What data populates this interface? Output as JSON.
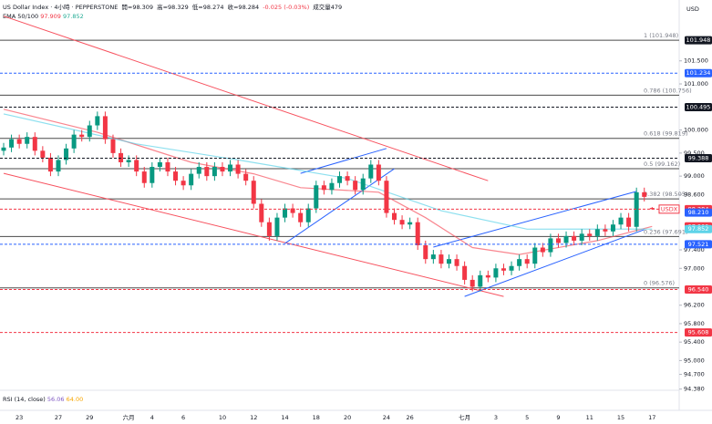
{
  "chart_data": {
    "type": "candlestick",
    "title": "US Dollar Index · 4小時 · PEPPERSTONE",
    "ohlc_legend": [
      "開=98.309",
      "高=98.329",
      "低=98.274",
      "收=98.284",
      "-0.025 (-0.03%)",
      "成交量479"
    ],
    "currency": "USD",
    "ema_legend": "EMA 50/100",
    "ema": [
      {
        "color": "#f7525f",
        "last": 97.909,
        "x": [
          0,
          12,
          24,
          32,
          38,
          48,
          54,
          60,
          66,
          76,
          83
        ],
        "values": [
          100.45,
          99.95,
          99.3,
          99.05,
          98.75,
          98.65,
          98.1,
          97.45,
          97.3,
          97.6,
          97.909
        ]
      },
      {
        "color": "#5ed3e8",
        "last": 97.852,
        "x": [
          0,
          17,
          30,
          44,
          56,
          67,
          83
        ],
        "values": [
          100.35,
          99.7,
          99.35,
          98.95,
          98.25,
          97.85,
          97.852
        ]
      }
    ],
    "rsi_legend": [
      "RSI (14, close)",
      "56.06",
      "64.00"
    ],
    "categories": [
      null,
      null,
      "23",
      null,
      null,
      null,
      null,
      "27",
      null,
      null,
      null,
      "29",
      null,
      null,
      null,
      null,
      "六月",
      null,
      null,
      "4",
      null,
      null,
      null,
      "6",
      null,
      null,
      null,
      null,
      "10",
      null,
      null,
      null,
      "12",
      null,
      null,
      null,
      "14",
      null,
      null,
      null,
      "18",
      null,
      null,
      null,
      "20",
      null,
      null,
      null,
      null,
      "24",
      null,
      null,
      "26",
      null,
      null,
      null,
      null,
      null,
      null,
      "七月",
      null,
      null,
      null,
      "3",
      null,
      null,
      null,
      "5",
      null,
      null,
      null,
      "9",
      null,
      null,
      null,
      "11",
      null,
      null,
      null,
      "15",
      null,
      null,
      null,
      "17"
    ],
    "candles": [
      [
        99.55,
        99.72,
        99.45,
        99.62
      ],
      [
        99.62,
        99.9,
        99.52,
        99.8
      ],
      [
        99.8,
        99.9,
        99.6,
        99.7
      ],
      [
        99.7,
        99.95,
        99.6,
        99.85
      ],
      [
        99.85,
        99.95,
        99.45,
        99.55
      ],
      [
        99.55,
        99.65,
        99.3,
        99.4
      ],
      [
        99.4,
        99.5,
        99.0,
        99.1
      ],
      [
        99.1,
        99.45,
        99.0,
        99.35
      ],
      [
        99.35,
        99.7,
        99.25,
        99.6
      ],
      [
        99.6,
        100.0,
        99.5,
        99.9
      ],
      [
        99.9,
        100.0,
        99.75,
        99.85
      ],
      [
        99.85,
        100.2,
        99.75,
        100.1
      ],
      [
        100.1,
        100.4,
        100.0,
        100.3
      ],
      [
        100.3,
        100.4,
        99.7,
        99.8
      ],
      [
        99.8,
        99.9,
        99.4,
        99.5
      ],
      [
        99.5,
        99.6,
        99.2,
        99.3
      ],
      [
        99.3,
        99.45,
        99.2,
        99.35
      ],
      [
        99.35,
        99.45,
        99.0,
        99.1
      ],
      [
        99.1,
        99.2,
        98.75,
        98.85
      ],
      [
        98.85,
        99.3,
        98.75,
        99.2
      ],
      [
        99.2,
        99.4,
        99.1,
        99.3
      ],
      [
        99.3,
        99.4,
        99.0,
        99.1
      ],
      [
        99.1,
        99.2,
        98.8,
        98.9
      ],
      [
        98.9,
        99.0,
        98.7,
        98.8
      ],
      [
        98.8,
        99.15,
        98.7,
        99.05
      ],
      [
        99.05,
        99.3,
        98.95,
        99.2
      ],
      [
        99.2,
        99.3,
        98.9,
        99.0
      ],
      [
        99.0,
        99.3,
        98.9,
        99.2
      ],
      [
        99.2,
        99.3,
        99.0,
        99.1
      ],
      [
        99.1,
        99.35,
        99.0,
        99.25
      ],
      [
        99.25,
        99.35,
        98.95,
        99.05
      ],
      [
        99.05,
        99.15,
        98.8,
        98.9
      ],
      [
        98.9,
        99.0,
        98.3,
        98.4
      ],
      [
        98.4,
        98.5,
        97.9,
        98.0
      ],
      [
        98.0,
        98.1,
        97.6,
        97.7
      ],
      [
        97.7,
        98.2,
        97.6,
        98.1
      ],
      [
        98.1,
        98.4,
        98.0,
        98.3
      ],
      [
        98.3,
        98.4,
        98.1,
        98.2
      ],
      [
        98.2,
        98.3,
        97.9,
        98.0
      ],
      [
        98.0,
        98.4,
        97.9,
        98.3
      ],
      [
        98.3,
        98.9,
        98.2,
        98.8
      ],
      [
        98.8,
        98.9,
        98.6,
        98.7
      ],
      [
        98.7,
        98.95,
        98.6,
        98.85
      ],
      [
        98.85,
        99.1,
        98.75,
        99.0
      ],
      [
        99.0,
        99.1,
        98.8,
        98.9
      ],
      [
        98.9,
        99.0,
        98.6,
        98.7
      ],
      [
        98.7,
        99.05,
        98.6,
        98.95
      ],
      [
        98.95,
        99.35,
        98.85,
        99.25
      ],
      [
        99.25,
        99.35,
        98.8,
        98.9
      ],
      [
        98.9,
        99.0,
        98.1,
        98.2
      ],
      [
        98.2,
        98.3,
        97.95,
        98.05
      ],
      [
        98.05,
        98.15,
        97.85,
        97.95
      ],
      [
        97.95,
        98.1,
        97.85,
        98.0
      ],
      [
        98.0,
        98.1,
        97.4,
        97.5
      ],
      [
        97.5,
        97.6,
        97.1,
        97.2
      ],
      [
        97.2,
        97.4,
        97.1,
        97.3
      ],
      [
        97.3,
        97.4,
        97.0,
        97.1
      ],
      [
        97.1,
        97.3,
        97.0,
        97.2
      ],
      [
        97.2,
        97.3,
        96.95,
        97.05
      ],
      [
        97.05,
        97.15,
        96.65,
        96.75
      ],
      [
        96.75,
        96.85,
        96.5,
        96.6
      ],
      [
        96.6,
        96.95,
        96.5,
        96.85
      ],
      [
        96.85,
        96.95,
        96.7,
        96.8
      ],
      [
        96.8,
        97.1,
        96.7,
        97.0
      ],
      [
        97.0,
        97.1,
        96.85,
        96.95
      ],
      [
        96.95,
        97.15,
        96.85,
        97.05
      ],
      [
        97.05,
        97.3,
        96.95,
        97.2
      ],
      [
        97.2,
        97.3,
        97.0,
        97.1
      ],
      [
        97.1,
        97.55,
        97.0,
        97.45
      ],
      [
        97.45,
        97.55,
        97.25,
        97.35
      ],
      [
        97.35,
        97.75,
        97.25,
        97.65
      ],
      [
        97.65,
        97.75,
        97.45,
        97.55
      ],
      [
        97.55,
        97.8,
        97.45,
        97.7
      ],
      [
        97.7,
        97.8,
        97.5,
        97.6
      ],
      [
        97.6,
        97.85,
        97.5,
        97.75
      ],
      [
        97.75,
        97.85,
        97.6,
        97.7
      ],
      [
        97.7,
        97.95,
        97.6,
        97.85
      ],
      [
        97.85,
        97.95,
        97.7,
        97.8
      ],
      [
        97.8,
        98.05,
        97.7,
        97.95
      ],
      [
        97.95,
        98.2,
        97.85,
        98.1
      ],
      [
        98.1,
        98.2,
        97.8,
        97.9
      ],
      [
        97.9,
        98.75,
        97.8,
        98.65
      ],
      [
        98.65,
        98.75,
        98.45,
        98.55
      ],
      [
        98.309,
        98.329,
        98.274,
        98.284
      ]
    ],
    "up_color": "#089981",
    "down_color": "#f23645",
    "ylim": [
      93.92,
      102.82
    ],
    "yticks": [
      {
        "value": 101.5,
        "label": "101.500"
      },
      {
        "value": 101.0,
        "label": "101.000"
      },
      {
        "value": 100.0,
        "label": "100.000"
      },
      {
        "value": 99.5,
        "label": "99.500"
      },
      {
        "value": 99.0,
        "label": "99.000"
      },
      {
        "value": 98.6,
        "label": "98.600"
      },
      {
        "value": 97.4,
        "label": "97.400"
      },
      {
        "value": 97.0,
        "label": "97.000"
      },
      {
        "value": 96.2,
        "label": "96.200"
      },
      {
        "value": 95.8,
        "label": "95.800"
      },
      {
        "value": 95.4,
        "label": "95.400"
      },
      {
        "value": 95.0,
        "label": "95.000"
      },
      {
        "value": 94.7,
        "label": "94.700"
      },
      {
        "value": 94.38,
        "label": "94.380"
      }
    ],
    "trendlines": [
      {
        "color": "#f7525f",
        "points": [
          [
            0,
            102.47
          ],
          [
            62,
            98.9
          ]
        ]
      },
      {
        "color": "#f7525f",
        "points": [
          [
            0,
            99.06
          ],
          [
            64,
            96.39
          ]
        ]
      },
      {
        "color": "#2962ff",
        "points": [
          [
            36,
            97.54
          ],
          [
            50,
            99.16
          ]
        ]
      },
      {
        "color": "#2962ff",
        "points": [
          [
            38,
            99.06
          ],
          [
            49,
            99.6
          ]
        ]
      },
      {
        "color": "#2962ff",
        "points": [
          [
            55,
            97.46
          ],
          [
            81,
            98.67
          ]
        ]
      },
      {
        "color": "#2962ff",
        "points": [
          [
            59,
            96.39
          ],
          [
            82,
            97.84
          ]
        ]
      }
    ],
    "fib": [
      {
        "value": 101.948,
        "label": "1 (101.948)"
      },
      {
        "value": 100.756,
        "label": "0.786 (100.756)"
      },
      {
        "value": 99.819,
        "label": "0.618 (99.819)"
      },
      {
        "value": 99.162,
        "label": "0.5 (99.162)"
      },
      {
        "value": 98.505,
        "label": "0.382 (98.505)"
      },
      {
        "value": 97.691,
        "label": "0.236 (97.691)"
      },
      {
        "value": 96.576,
        "label": "0 (96.576)"
      }
    ],
    "symbol_tag": "USDX",
    "levels": [
      {
        "value": 101.948,
        "color": "#131722",
        "line": false
      },
      {
        "value": 101.234,
        "color": "#2962ff",
        "line": true
      },
      {
        "value": 100.495,
        "color": "#131722",
        "line": true
      },
      {
        "value": 99.388,
        "color": "#131722",
        "line": true
      },
      {
        "value": 98.284,
        "color": "#f23645",
        "line": true
      },
      {
        "value": 98.21,
        "label": "98.210",
        "color": "#2962ff",
        "line": false
      },
      {
        "value": 97.909,
        "color": "#f23645",
        "line": false
      },
      {
        "value": 97.852,
        "color": "#5ed3e8",
        "line": false
      },
      {
        "value": 97.521,
        "color": "#2962ff",
        "line": true
      },
      {
        "value": 96.54,
        "label": "96.540",
        "color": "#f23645",
        "line": true
      },
      {
        "value": 95.608,
        "color": "#f23645",
        "line": true
      }
    ]
  }
}
